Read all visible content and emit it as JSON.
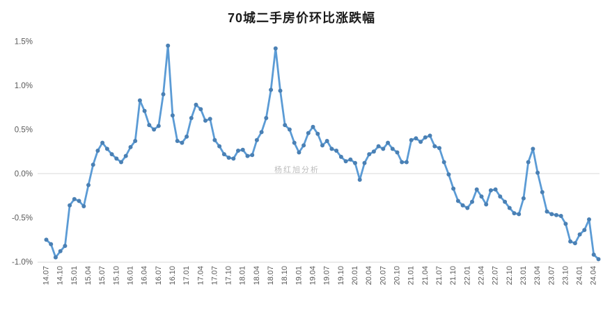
{
  "watermark": "杨红旭分析",
  "chart_data": {
    "type": "line",
    "title": "70城二手房价环比涨跌幅",
    "unit": "%",
    "legend": "none",
    "grid": "zero-line-only",
    "line_color": "#5B9BD5",
    "marker_color": "#4A80B4",
    "grid_color": "#D9D9D9",
    "label_color": "#595959",
    "ylim": [
      -1.0,
      1.5
    ],
    "y_ticks": [
      "1.5%",
      "1.0%",
      "0.5%",
      "0.0%",
      "-0.5%",
      "-1.0%"
    ],
    "y_tick_values": [
      1.5,
      1.0,
      0.5,
      0.0,
      -0.5,
      -1.0
    ],
    "x_tick_every": 3,
    "x": [
      "14.07",
      "14.08",
      "14.09",
      "14.10",
      "14.11",
      "14.12",
      "15.01",
      "15.02",
      "15.03",
      "15.04",
      "15.05",
      "15.06",
      "15.07",
      "15.08",
      "15.09",
      "15.10",
      "15.11",
      "15.12",
      "16.01",
      "16.02",
      "16.03",
      "16.04",
      "16.05",
      "16.06",
      "16.07",
      "16.08",
      "16.09",
      "16.10",
      "16.11",
      "16.12",
      "17.01",
      "17.02",
      "17.03",
      "17.04",
      "17.05",
      "17.06",
      "17.07",
      "17.08",
      "17.09",
      "17.10",
      "17.11",
      "17.12",
      "18.01",
      "18.02",
      "18.03",
      "18.04",
      "18.05",
      "18.06",
      "18.07",
      "18.08",
      "18.09",
      "18.10",
      "18.11",
      "18.12",
      "19.01",
      "19.02",
      "19.03",
      "19.04",
      "19.05",
      "19.06",
      "19.07",
      "19.08",
      "19.09",
      "19.10",
      "19.11",
      "19.12",
      "20.01",
      "20.02",
      "20.03",
      "20.04",
      "20.05",
      "20.06",
      "20.07",
      "20.08",
      "20.09",
      "20.10",
      "20.11",
      "20.12",
      "21.01",
      "21.02",
      "21.03",
      "21.04",
      "21.05",
      "21.06",
      "21.07",
      "21.08",
      "21.09",
      "21.10",
      "21.11",
      "21.12",
      "22.01",
      "22.02",
      "22.03",
      "22.04",
      "22.05",
      "22.06",
      "22.07",
      "22.08",
      "22.09",
      "22.10",
      "22.11",
      "22.12",
      "23.01",
      "23.02",
      "23.03",
      "23.04",
      "23.05",
      "23.06",
      "23.07",
      "23.08",
      "23.09",
      "23.10",
      "23.11",
      "23.12",
      "24.01",
      "24.02",
      "24.03",
      "24.04",
      "24.05"
    ],
    "values": [
      -0.75,
      -0.8,
      -0.95,
      -0.88,
      -0.82,
      -0.36,
      -0.29,
      -0.31,
      -0.37,
      -0.13,
      0.1,
      0.26,
      0.35,
      0.28,
      0.22,
      0.17,
      0.13,
      0.2,
      0.3,
      0.37,
      0.83,
      0.71,
      0.55,
      0.5,
      0.54,
      0.9,
      1.45,
      0.66,
      0.37,
      0.35,
      0.42,
      0.63,
      0.78,
      0.73,
      0.6,
      0.62,
      0.38,
      0.31,
      0.22,
      0.18,
      0.17,
      0.26,
      0.27,
      0.2,
      0.21,
      0.38,
      0.47,
      0.63,
      0.95,
      1.42,
      0.94,
      0.55,
      0.5,
      0.35,
      0.24,
      0.32,
      0.46,
      0.53,
      0.45,
      0.32,
      0.37,
      0.28,
      0.26,
      0.19,
      0.14,
      0.16,
      0.12,
      -0.07,
      0.12,
      0.22,
      0.25,
      0.31,
      0.28,
      0.35,
      0.28,
      0.24,
      0.13,
      0.13,
      0.38,
      0.4,
      0.36,
      0.41,
      0.43,
      0.31,
      0.29,
      0.13,
      -0.01,
      -0.17,
      -0.31,
      -0.36,
      -0.39,
      -0.32,
      -0.18,
      -0.26,
      -0.35,
      -0.19,
      -0.18,
      -0.26,
      -0.32,
      -0.39,
      -0.45,
      -0.46,
      -0.28,
      0.13,
      0.28,
      0.01,
      -0.21,
      -0.43,
      -0.46,
      -0.47,
      -0.48,
      -0.57,
      -0.77,
      -0.79,
      -0.69,
      -0.64,
      -0.52,
      -0.92,
      -0.97
    ]
  }
}
